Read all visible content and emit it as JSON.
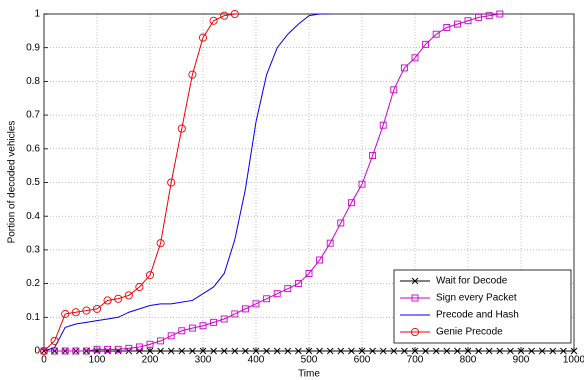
{
  "chart_data": {
    "type": "line",
    "xlabel": "Time",
    "ylabel": "Portion of decoded vehicles",
    "xlim": [
      0,
      1000
    ],
    "ylim": [
      0,
      1
    ],
    "xticks": [
      0,
      100,
      200,
      300,
      400,
      500,
      600,
      700,
      800,
      900,
      1000
    ],
    "yticks": [
      0,
      0.1,
      0.2,
      0.3,
      0.4,
      0.5,
      0.6,
      0.7,
      0.8,
      0.9,
      1
    ],
    "grid": true,
    "legend": "lower right",
    "series": [
      {
        "name": "Wait for Decode",
        "color": "#000000",
        "marker": "x",
        "x": [
          0,
          20,
          40,
          60,
          80,
          100,
          120,
          140,
          160,
          180,
          200,
          220,
          240,
          260,
          280,
          300,
          320,
          340,
          360,
          380,
          400,
          420,
          440,
          460,
          480,
          500,
          520,
          540,
          560,
          580,
          600,
          620,
          640,
          660,
          680,
          700,
          720,
          740,
          760,
          780,
          800,
          820,
          840,
          860,
          880,
          900,
          920,
          940,
          960,
          980,
          1000
        ],
        "values": [
          0,
          0,
          0,
          0,
          0,
          0,
          0,
          0,
          0,
          0,
          0,
          0,
          0,
          0,
          0,
          0,
          0,
          0,
          0,
          0,
          0,
          0,
          0,
          0,
          0,
          0,
          0,
          0,
          0,
          0,
          0,
          0,
          0,
          0,
          0,
          0,
          0,
          0,
          0,
          0,
          0,
          0,
          0,
          0,
          0,
          0,
          0,
          0,
          0,
          0,
          0
        ]
      },
      {
        "name": "Sign every Packet",
        "color": "#cc00cc",
        "marker": "square",
        "x": [
          0,
          20,
          40,
          60,
          80,
          100,
          120,
          140,
          160,
          180,
          200,
          220,
          240,
          260,
          280,
          300,
          320,
          340,
          360,
          380,
          400,
          420,
          440,
          460,
          480,
          500,
          520,
          540,
          560,
          580,
          600,
          620,
          640,
          660,
          680,
          700,
          720,
          740,
          760,
          780,
          800,
          820,
          840,
          860
        ],
        "values": [
          0,
          0,
          0,
          0,
          0,
          0.005,
          0.005,
          0.005,
          0.008,
          0.012,
          0.02,
          0.03,
          0.045,
          0.06,
          0.068,
          0.075,
          0.085,
          0.095,
          0.11,
          0.125,
          0.14,
          0.155,
          0.17,
          0.185,
          0.2,
          0.23,
          0.27,
          0.32,
          0.38,
          0.44,
          0.495,
          0.58,
          0.67,
          0.775,
          0.84,
          0.87,
          0.91,
          0.94,
          0.96,
          0.97,
          0.98,
          0.99,
          0.995,
          1
        ]
      },
      {
        "name": "Precode and Hash",
        "color": "#0000ee",
        "marker": "none",
        "x": [
          0,
          20,
          40,
          60,
          80,
          100,
          120,
          140,
          160,
          180,
          200,
          220,
          240,
          260,
          280,
          300,
          320,
          340,
          360,
          380,
          400,
          420,
          440,
          460,
          480,
          500,
          520,
          540
        ],
        "values": [
          0,
          0.01,
          0.07,
          0.08,
          0.085,
          0.09,
          0.095,
          0.1,
          0.115,
          0.125,
          0.135,
          0.14,
          0.14,
          0.145,
          0.15,
          0.17,
          0.19,
          0.23,
          0.33,
          0.48,
          0.68,
          0.82,
          0.9,
          0.94,
          0.97,
          0.995,
          1,
          1
        ]
      },
      {
        "name": "Genie Precode",
        "color": "#ee0000",
        "marker": "circle",
        "x": [
          0,
          20,
          40,
          60,
          80,
          100,
          120,
          140,
          160,
          180,
          200,
          220,
          240,
          260,
          280,
          300,
          320,
          340,
          360
        ],
        "values": [
          0,
          0.03,
          0.11,
          0.115,
          0.12,
          0.125,
          0.15,
          0.155,
          0.165,
          0.19,
          0.225,
          0.32,
          0.5,
          0.66,
          0.82,
          0.93,
          0.98,
          0.995,
          1
        ]
      }
    ]
  }
}
